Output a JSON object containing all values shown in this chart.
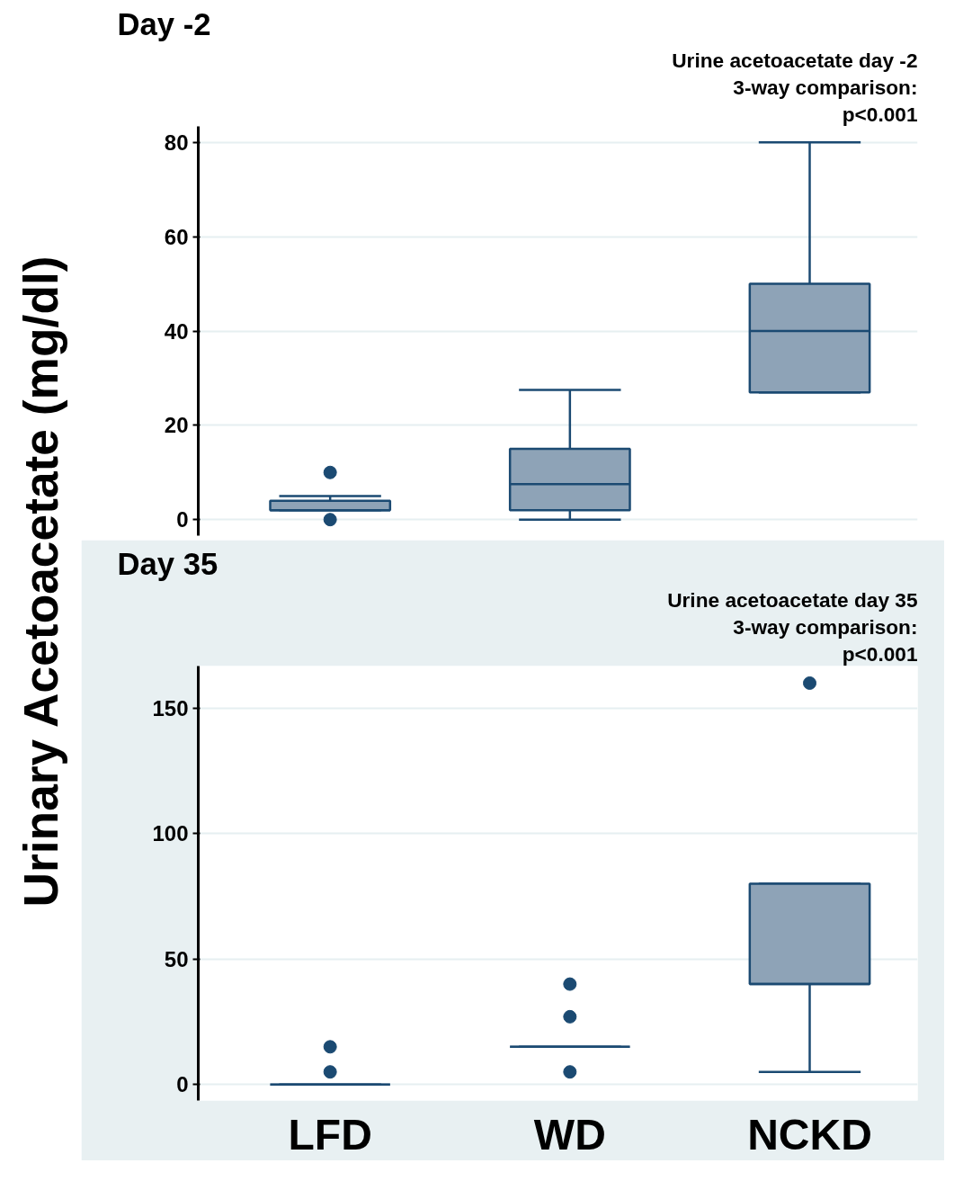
{
  "chart_data": [
    {
      "type": "box",
      "title": "Day -2",
      "ylabel": "Urinary Acetoacetate (mg/dl)",
      "categories": [
        null,
        null,
        null
      ],
      "series": [
        {
          "color": "#8ea3b7",
          "boxes": [
            {
              "low": 2,
              "q1": 2,
              "median": 2,
              "q3": 4,
              "high": 5,
              "outliers": [
                10,
                0
              ]
            },
            {
              "low": 0,
              "q1": 2,
              "median": 7.5,
              "q3": 15,
              "high": 27.5
            },
            {
              "low": 27,
              "q1": 27,
              "median": 40,
              "q3": 50,
              "high": 80
            }
          ]
        }
      ],
      "ylim": [
        -3.4,
        83.4
      ],
      "yticks": [
        0,
        20,
        40,
        60,
        80
      ],
      "grid": "y",
      "tick_labels": "y",
      "annotations": [
        "Urine acetoacetate day -2",
        "3-way comparison:",
        "p<0.001"
      ]
    },
    {
      "type": "box",
      "title": "Day 35",
      "categories": [
        "LFD",
        "WD",
        "NCKD"
      ],
      "series": [
        {
          "color": "#8ea3b7",
          "boxes": [
            {
              "low": 0,
              "q1": 0,
              "median": 0,
              "q3": 0,
              "high": 0,
              "outliers": [
                5,
                15
              ]
            },
            {
              "low": 15,
              "q1": 15,
              "median": 15,
              "q3": 15,
              "high": 15,
              "outliers": [
                5,
                27,
                40
              ]
            },
            {
              "low": 5,
              "q1": 40,
              "median": 40,
              "q3": 80,
              "high": 80,
              "outliers": [
                160
              ]
            }
          ]
        }
      ],
      "ylim": [
        -6.4,
        166.8
      ],
      "yticks": [
        0,
        50,
        100,
        150
      ],
      "grid": "y",
      "annotations": [
        "Urine acetoacetate day 35",
        "3-way comparison:",
        "p<0.001"
      ]
    }
  ]
}
